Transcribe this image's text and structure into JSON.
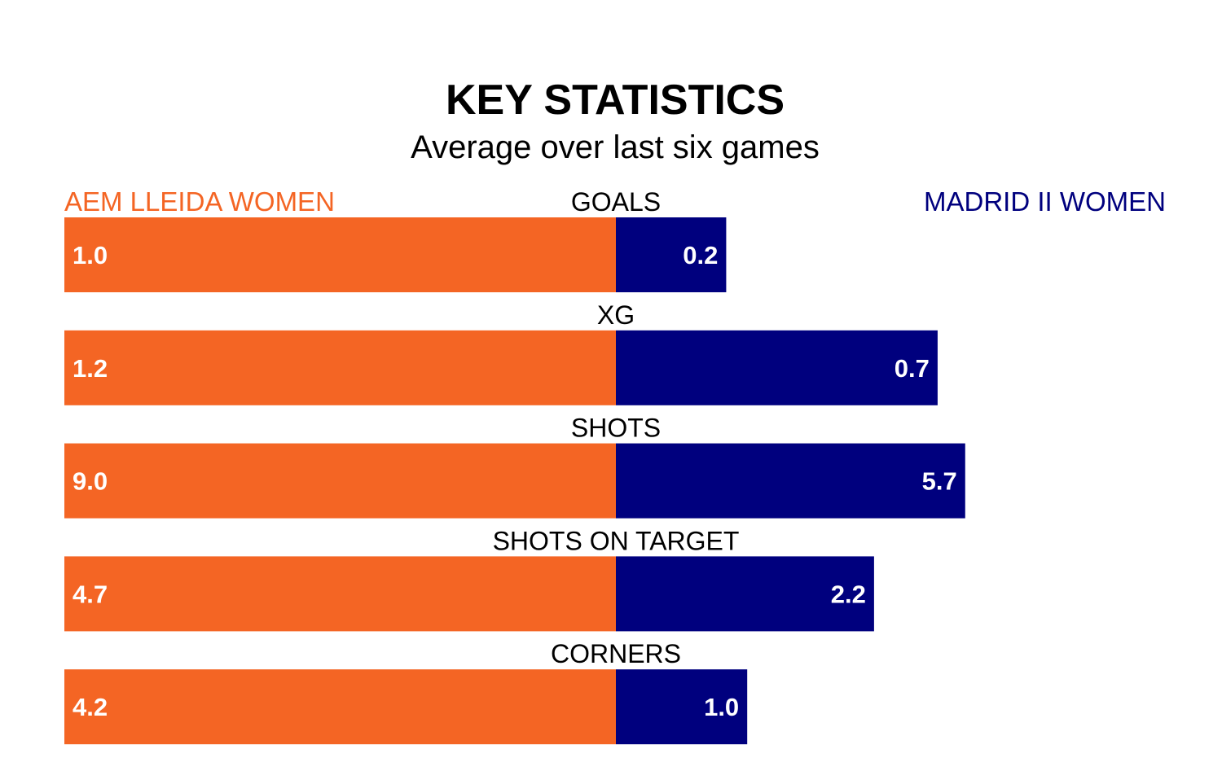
{
  "title": "KEY STATISTICS",
  "subtitle": "Average over last six games",
  "teams": {
    "left": {
      "name": "AEM LLEIDA WOMEN",
      "color": "#f46524"
    },
    "right": {
      "name": "MADRID II WOMEN",
      "color": "#00007e"
    }
  },
  "chart_data": {
    "type": "bar",
    "orientation": "horizontal-split",
    "title": "KEY STATISTICS",
    "subtitle": "Average over last six games",
    "categories": [
      "GOALS",
      "XG",
      "SHOTS",
      "SHOTS ON TARGET",
      "CORNERS"
    ],
    "series": [
      {
        "name": "AEM LLEIDA WOMEN",
        "values": [
          1.0,
          1.2,
          9.0,
          4.7,
          4.2
        ],
        "labels": [
          "1.0",
          "1.2",
          "9.0",
          "4.7",
          "4.2"
        ]
      },
      {
        "name": "MADRID II WOMEN",
        "values": [
          0.2,
          0.7,
          5.7,
          2.2,
          1.0
        ],
        "labels": [
          "0.2",
          "0.7",
          "5.7",
          "2.2",
          "1.0"
        ]
      }
    ],
    "scaling": "each row normalized to its left value (left bar always full half-width)",
    "grid": false,
    "legend": "top (team names above bars, left and right)"
  }
}
